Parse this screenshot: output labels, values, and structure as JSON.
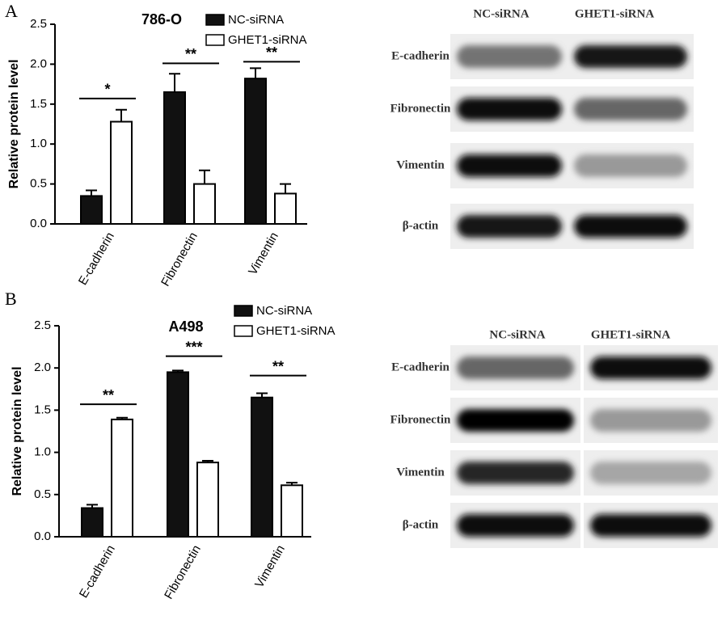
{
  "panel_labels": [
    "A",
    "B"
  ],
  "chart_data": [
    {
      "type": "bar",
      "title": "786-O",
      "y_label": "Relative protein level",
      "categories": [
        "E-cadherin",
        "Fibronectin",
        "Vimentin"
      ],
      "series": [
        {
          "name": "NC-siRNA",
          "color": "#111111",
          "values": [
            0.35,
            1.65,
            1.82
          ],
          "errors": [
            0.07,
            0.23,
            0.13
          ]
        },
        {
          "name": "GHET1-siRNA",
          "color": "#ffffff",
          "values": [
            1.28,
            0.5,
            0.38
          ],
          "errors": [
            0.15,
            0.17,
            0.12
          ]
        }
      ],
      "annotations": [
        {
          "text": "*",
          "y": 1.57
        },
        {
          "text": "**",
          "y": 2.01
        },
        {
          "text": "**",
          "y": 2.03
        }
      ],
      "ylim": [
        0,
        2.5
      ],
      "yticks": [
        {
          "value": 0,
          "label": "0.0"
        },
        0.5,
        {
          "value": 1,
          "label": "1.0"
        },
        1.5,
        {
          "value": 2,
          "label": "2.0"
        },
        2.5
      ]
    },
    {
      "type": "bar",
      "title": "A498",
      "y_label": "Relative protein level",
      "categories": [
        "E-cadherin",
        "Fibronectin",
        "Vimentin"
      ],
      "series": [
        {
          "name": "NC-siRNA",
          "color": "#111111",
          "values": [
            0.34,
            1.95,
            1.65
          ],
          "errors": [
            0.04,
            0.02,
            0.05
          ]
        },
        {
          "name": "GHET1-siRNA",
          "color": "#ffffff",
          "values": [
            1.39,
            0.88,
            0.61
          ],
          "errors": [
            0.02,
            0.02,
            0.03
          ]
        }
      ],
      "annotations": [
        {
          "text": "**",
          "y": 1.57
        },
        {
          "text": "***",
          "y": 2.14
        },
        {
          "text": "**",
          "y": 1.91
        }
      ],
      "ylim": [
        0,
        2.5
      ],
      "yticks": [
        {
          "value": 0,
          "label": "0.0"
        },
        0.5,
        {
          "value": 1,
          "label": "1.0"
        },
        1.5,
        {
          "value": 2,
          "label": "2.0"
        },
        2.5
      ]
    }
  ],
  "blots": [
    {
      "lanes": [
        "NC-siRNA",
        "GHET1-siRNA"
      ],
      "proteins": [
        "E-cadherin",
        "Fibronectin",
        "Vimentin",
        "β-actin"
      ]
    },
    {
      "lanes": [
        "NC-siRNA",
        "GHET1-siRNA"
      ],
      "proteins": [
        "E-cadherin",
        "Fibronectin",
        "Vimentin",
        "β-actin"
      ]
    }
  ]
}
